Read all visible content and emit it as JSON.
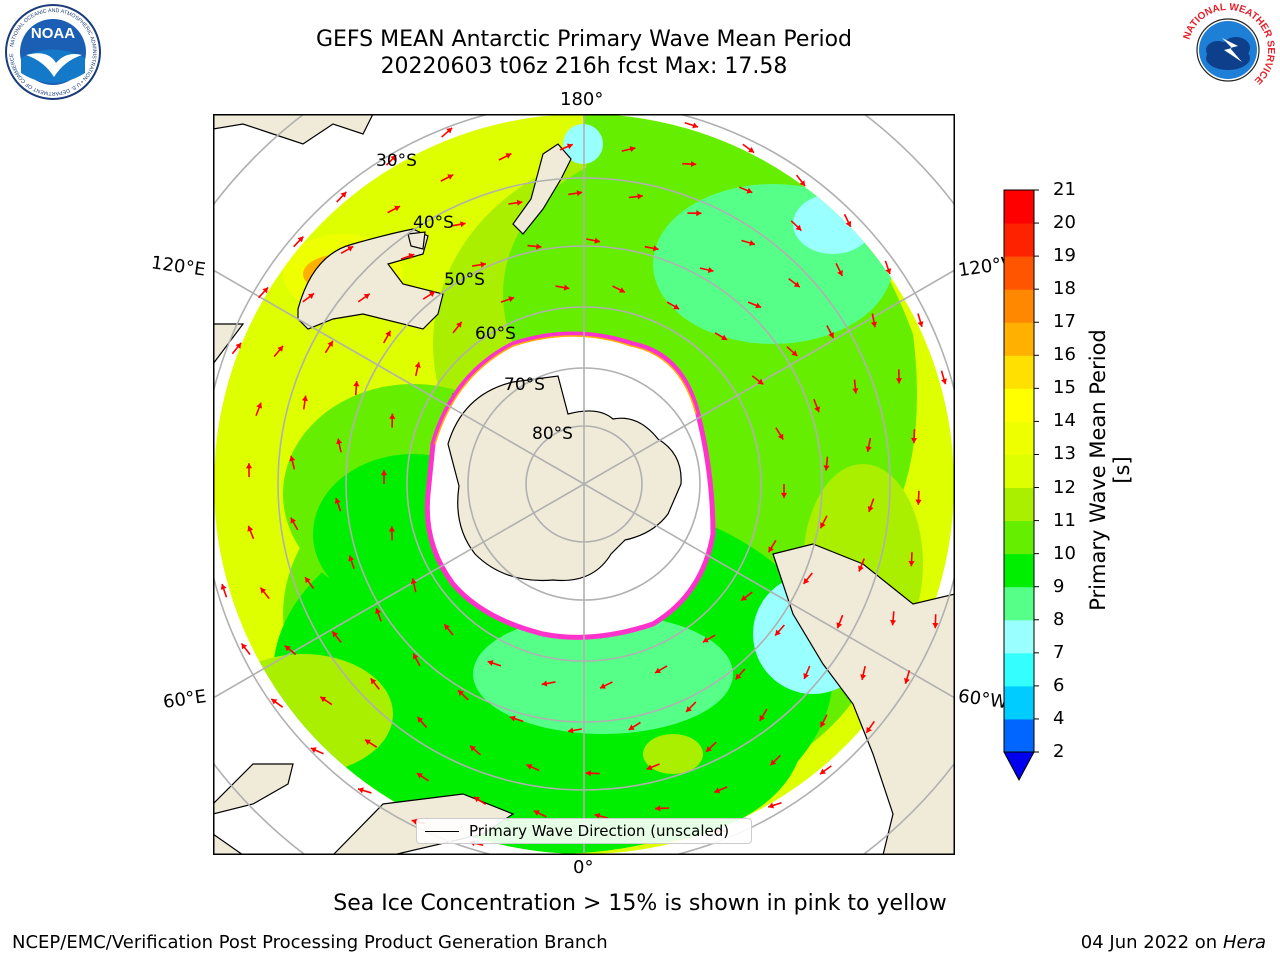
{
  "title": {
    "line1": "GEFS MEAN Antarctic Primary Wave Mean Period",
    "line2": "20220603 t06z 216h fcst   Max: 17.58"
  },
  "map": {
    "projection": "south-polar-stereographic",
    "longitude_labels": {
      "top": "180°",
      "upper_left": "120°E",
      "upper_right": "120°W",
      "lower_left": "60°E",
      "lower_right": "60°W",
      "bottom": "0°"
    },
    "latitude_labels": [
      "30°S",
      "40°S",
      "50°S",
      "60°S",
      "70°S",
      "80°S"
    ],
    "legend": "Primary Wave Direction (unscaled)",
    "arrow_color": "#ff0000",
    "land_color": "#efebd8",
    "sea_ice_color": "#ff33cc"
  },
  "colorbar": {
    "label": "Primary Wave Mean Period [s]",
    "ticks": [
      "2",
      "4",
      "6",
      "7",
      "8",
      "9",
      "10",
      "11",
      "12",
      "13",
      "14",
      "15",
      "16",
      "17",
      "18",
      "19",
      "20",
      "21"
    ],
    "colors": [
      "#0066ff",
      "#00ccff",
      "#33ffff",
      "#99ffff",
      "#55ff88",
      "#00ee00",
      "#66ee00",
      "#aaee00",
      "#ddff00",
      "#eeff00",
      "#ffff00",
      "#ffe000",
      "#ffb000",
      "#ff8800",
      "#ff5500",
      "#ff2200",
      "#ff0000"
    ],
    "extend_color": "#0000ee"
  },
  "caption": "Sea Ice Concentration > 15% is shown in pink to yellow",
  "footer": {
    "left": "NCEP/EMC/Verification Post Processing Product Generation Branch",
    "right_date": "04 Jun 2022 on",
    "right_machine": "Hera"
  },
  "logos": {
    "noaa_text": "NOAA",
    "noaa_ring": "NATIONAL OCEANIC AND ATMOSPHERIC ADMINISTRATION • U.S. DEPARTMENT OF COMMERCE",
    "nws_ring": "NATIONAL WEATHER SERVICE"
  }
}
